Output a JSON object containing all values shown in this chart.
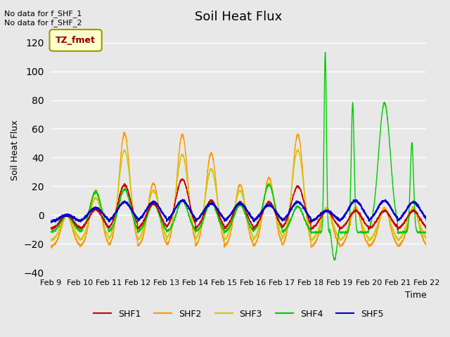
{
  "title": "Soil Heat Flux",
  "ylabel": "Soil Heat Flux",
  "xlabel": "Time",
  "ylim": [
    -40,
    130
  ],
  "yticks": [
    -40,
    -20,
    0,
    20,
    40,
    60,
    80,
    100,
    120
  ],
  "background_color": "#e8e8e8",
  "plot_bg_color": "#e8e8e8",
  "annotation_text": "No data for f_SHF_1\nNo data for f_SHF_2",
  "box_label": "TZ_fmet",
  "box_facecolor": "#ffffcc",
  "box_edgecolor": "#999900",
  "box_text_color": "#880000",
  "colors": {
    "SHF1": "#cc0000",
    "SHF2": "#ff9900",
    "SHF3": "#cccc00",
    "SHF4": "#00cc00",
    "SHF5": "#0000cc"
  },
  "n_days": 13,
  "start_day": 9,
  "day_peak_amps": {
    "SHF2": [
      0,
      17,
      57,
      22,
      56,
      43,
      21,
      26,
      56,
      5,
      5,
      5,
      5,
      0
    ],
    "SHF3": [
      0,
      12,
      45,
      17,
      42,
      32,
      17,
      22,
      45,
      4,
      4,
      4,
      4,
      0
    ],
    "SHF1": [
      0,
      4,
      21,
      8,
      25,
      10,
      9,
      9,
      20,
      3,
      3,
      3,
      3,
      0
    ],
    "SHF4": [
      0,
      16,
      18,
      8,
      10,
      9,
      7,
      21,
      6,
      5,
      113,
      78,
      50,
      0
    ],
    "SHF5": [
      0,
      5,
      9,
      9,
      10,
      8,
      8,
      7,
      9,
      3,
      10,
      10,
      9,
      0
    ]
  },
  "night_base": {
    "SHF2": -22,
    "SHF3": -18,
    "SHF1": -10,
    "SHF4": -12,
    "SHF5": -5
  }
}
